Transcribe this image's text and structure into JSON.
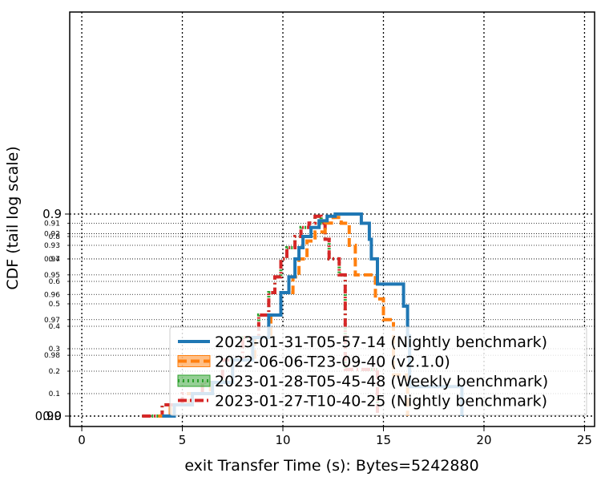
{
  "chart_data": {
    "type": "line",
    "xlabel": "exit Transfer Time (s): Bytes=5242880",
    "ylabel": "CDF (tail log scale)",
    "xlim": [
      -0.6,
      25.5
    ],
    "xticks": [
      0,
      5,
      10,
      15,
      20,
      25
    ],
    "y_scale": "tail log (CDF)",
    "y_major_ticks": [
      "0.0",
      "0.9",
      "0.99"
    ],
    "y_major_values": [
      0.0,
      0.9,
      0.99
    ],
    "y_minor_ticks": [
      "0.1",
      "0.2",
      "0.3",
      "0.4",
      "0.5",
      "0.6",
      "0.7",
      "0.8",
      "0.91",
      "0.92",
      "0.93",
      "0.94",
      "0.95",
      "0.96",
      "0.97",
      "0.98"
    ],
    "y_minor_values": [
      0.1,
      0.2,
      0.3,
      0.4,
      0.5,
      0.6,
      0.7,
      0.8,
      0.91,
      0.92,
      0.93,
      0.94,
      0.95,
      0.96,
      0.97,
      0.98
    ],
    "grid": true,
    "legend_position": "bottom-right",
    "series": [
      {
        "name": "2023-01-31-T05-57-14 (Nightly benchmark)",
        "color": "#1f77b4",
        "style": "solid",
        "points": [
          [
            4.0,
            0.0
          ],
          [
            4.6,
            0.05
          ],
          [
            5.5,
            0.1
          ],
          [
            6.5,
            0.15
          ],
          [
            7.5,
            0.25
          ],
          [
            8.5,
            0.35
          ],
          [
            9.3,
            0.45
          ],
          [
            9.9,
            0.55
          ],
          [
            10.3,
            0.62
          ],
          [
            10.6,
            0.7
          ],
          [
            10.8,
            0.75
          ],
          [
            11.0,
            0.8
          ],
          [
            11.4,
            0.84
          ],
          [
            11.8,
            0.87
          ],
          [
            12.2,
            0.89
          ],
          [
            12.6,
            0.9
          ],
          [
            13.9,
            0.91
          ],
          [
            14.3,
            0.925
          ],
          [
            14.4,
            0.94
          ],
          [
            14.7,
            0.955
          ],
          [
            16.0,
            0.965
          ],
          [
            16.2,
            0.975
          ],
          [
            16.3,
            0.986
          ],
          [
            18.9,
            0.99
          ]
        ]
      },
      {
        "name": "2022-06-06-T23-09-40 (v2.1.0)",
        "color": "#ff7f0e",
        "style": "dashed",
        "points": [
          [
            3.8,
            0.0
          ],
          [
            4.4,
            0.05
          ],
          [
            5.3,
            0.1
          ],
          [
            6.4,
            0.15
          ],
          [
            7.5,
            0.25
          ],
          [
            8.6,
            0.35
          ],
          [
            9.4,
            0.45
          ],
          [
            9.9,
            0.55
          ],
          [
            10.5,
            0.62
          ],
          [
            10.8,
            0.7
          ],
          [
            11.2,
            0.78
          ],
          [
            11.6,
            0.82
          ],
          [
            12.1,
            0.86
          ],
          [
            12.5,
            0.885
          ],
          [
            12.9,
            0.91
          ],
          [
            13.3,
            0.93
          ],
          [
            13.6,
            0.95
          ],
          [
            14.6,
            0.962
          ],
          [
            15.0,
            0.97
          ],
          [
            15.5,
            0.984
          ],
          [
            16.2,
            0.99
          ]
        ]
      },
      {
        "name": "2023-01-28-T05-45-48 (Weekly benchmark)",
        "color": "#2ca02c",
        "style": "dotted",
        "points": [
          [
            3.0,
            0.0
          ],
          [
            4.0,
            0.05
          ],
          [
            5.0,
            0.1
          ],
          [
            6.0,
            0.15
          ],
          [
            7.0,
            0.25
          ],
          [
            8.0,
            0.35
          ],
          [
            8.8,
            0.45
          ],
          [
            9.3,
            0.55
          ],
          [
            9.6,
            0.62
          ],
          [
            9.9,
            0.7
          ],
          [
            10.2,
            0.75
          ],
          [
            10.6,
            0.8
          ],
          [
            10.9,
            0.84
          ],
          [
            11.3,
            0.86
          ],
          [
            11.6,
            0.89
          ],
          [
            11.9,
            0.91
          ],
          [
            12.1,
            0.925
          ],
          [
            12.3,
            0.94
          ],
          [
            12.8,
            0.95
          ],
          [
            13.1,
            0.965
          ],
          [
            13.1,
            0.983
          ],
          [
            14.7,
            0.99
          ]
        ]
      },
      {
        "name": "2023-01-27-T10-40-25 (Nightly benchmark)",
        "color": "#d62728",
        "style": "dashdot",
        "points": [
          [
            3.0,
            0.0
          ],
          [
            4.0,
            0.05
          ],
          [
            5.0,
            0.1
          ],
          [
            6.0,
            0.15
          ],
          [
            7.0,
            0.25
          ],
          [
            8.0,
            0.35
          ],
          [
            8.8,
            0.45
          ],
          [
            9.3,
            0.55
          ],
          [
            9.6,
            0.62
          ],
          [
            9.9,
            0.7
          ],
          [
            10.2,
            0.75
          ],
          [
            10.6,
            0.8
          ],
          [
            10.9,
            0.84
          ],
          [
            11.3,
            0.86
          ],
          [
            11.6,
            0.89
          ],
          [
            11.9,
            0.91
          ],
          [
            12.1,
            0.925
          ],
          [
            12.3,
            0.94
          ],
          [
            12.8,
            0.95
          ],
          [
            13.1,
            0.965
          ],
          [
            13.1,
            0.983
          ],
          [
            14.7,
            0.99
          ]
        ]
      }
    ]
  }
}
